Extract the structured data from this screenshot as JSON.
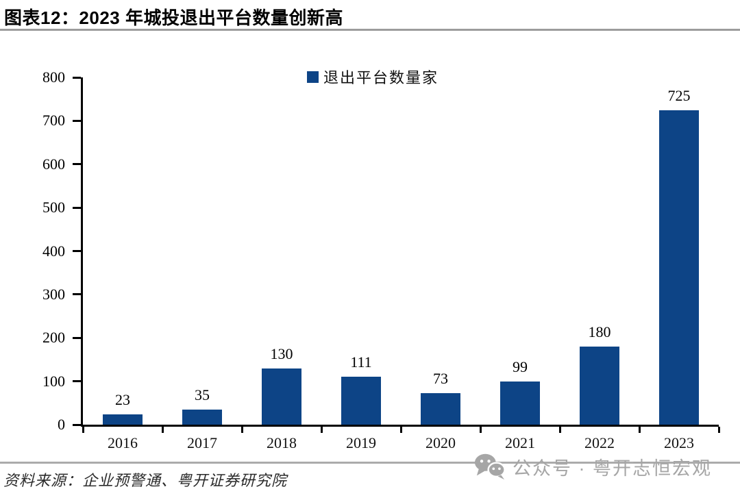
{
  "header": {
    "title": "图表12：2023 年城投退出平台数量创新高"
  },
  "chart_data": {
    "type": "bar",
    "title": "图表12：2023 年城投退出平台数量创新高",
    "legend": [
      "退出平台数量家"
    ],
    "legend_position": "top-center",
    "categories": [
      "2016",
      "2017",
      "2018",
      "2019",
      "2020",
      "2021",
      "2022",
      "2023"
    ],
    "values": [
      23,
      35,
      130,
      111,
      73,
      99,
      180,
      725
    ],
    "data_labels": true,
    "xlabel": "",
    "ylabel": "",
    "ylim": [
      0,
      800
    ],
    "yticks": [
      0,
      100,
      200,
      300,
      400,
      500,
      600,
      700,
      800
    ],
    "grid": false,
    "bar_color": "#0d4486"
  },
  "footer": {
    "source": "资料来源：企业预警通、粤开证券研究院"
  },
  "watermark": {
    "icon": "wechat-icon",
    "text": "公众号 · 粤开志恒宏观",
    "color": "#a6a6a6"
  }
}
